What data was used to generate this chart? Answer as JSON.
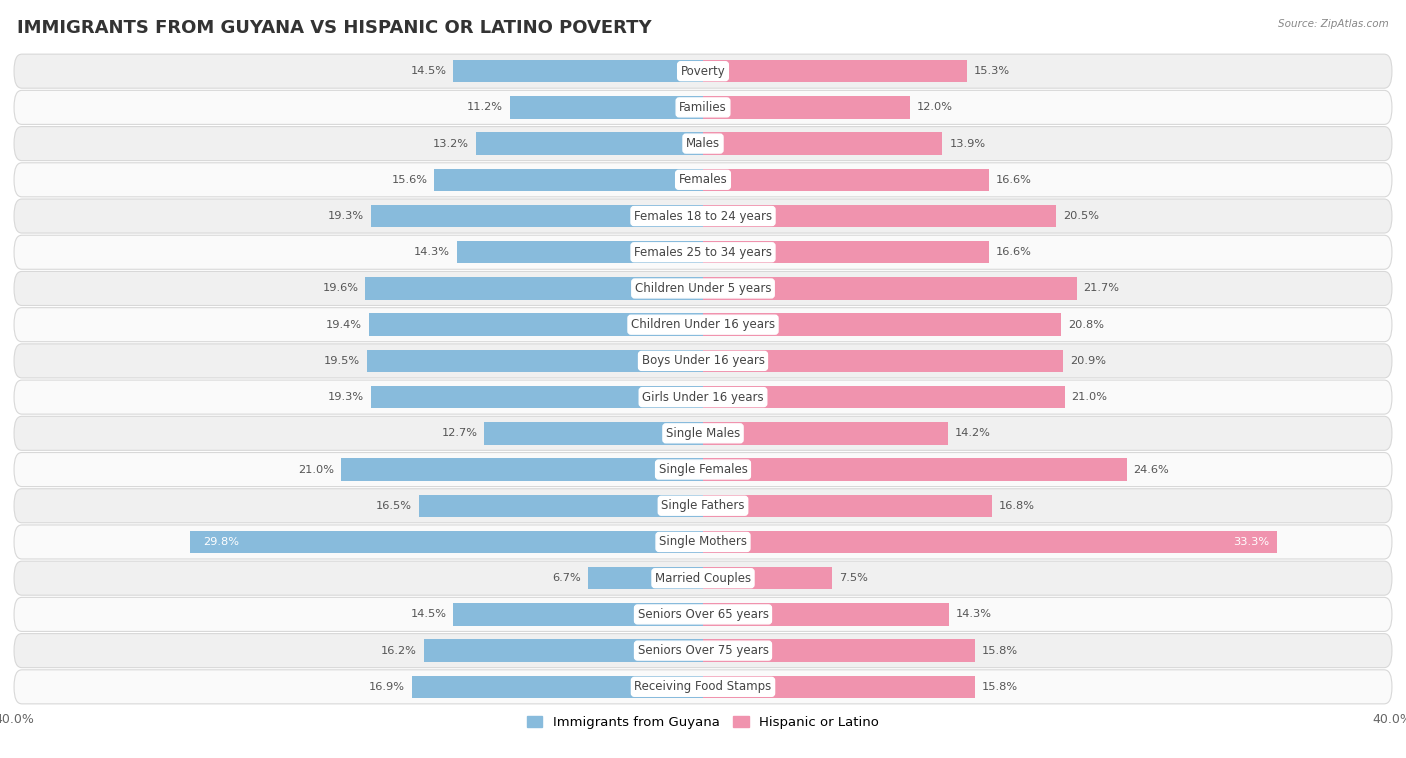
{
  "title": "IMMIGRANTS FROM GUYANA VS HISPANIC OR LATINO POVERTY",
  "source": "Source: ZipAtlas.com",
  "categories": [
    "Poverty",
    "Families",
    "Males",
    "Females",
    "Females 18 to 24 years",
    "Females 25 to 34 years",
    "Children Under 5 years",
    "Children Under 16 years",
    "Boys Under 16 years",
    "Girls Under 16 years",
    "Single Males",
    "Single Females",
    "Single Fathers",
    "Single Mothers",
    "Married Couples",
    "Seniors Over 65 years",
    "Seniors Over 75 years",
    "Receiving Food Stamps"
  ],
  "guyana_values": [
    14.5,
    11.2,
    13.2,
    15.6,
    19.3,
    14.3,
    19.6,
    19.4,
    19.5,
    19.3,
    12.7,
    21.0,
    16.5,
    29.8,
    6.7,
    14.5,
    16.2,
    16.9
  ],
  "hispanic_values": [
    15.3,
    12.0,
    13.9,
    16.6,
    20.5,
    16.6,
    21.7,
    20.8,
    20.9,
    21.0,
    14.2,
    24.6,
    16.8,
    33.3,
    7.5,
    14.3,
    15.8,
    15.8
  ],
  "guyana_color": "#88bbdc",
  "hispanic_color": "#f093ae",
  "guyana_label": "Immigrants from Guyana",
  "hispanic_label": "Hispanic or Latino",
  "xlim": 40.0,
  "bar_height": 0.62,
  "background_color": "#ffffff",
  "row_color_odd": "#f0f0f0",
  "row_color_even": "#fafafa",
  "row_border_color": "#d8d8d8",
  "title_fontsize": 13,
  "label_fontsize": 8.5,
  "value_fontsize": 8.2,
  "axis_fontsize": 9,
  "inside_label_threshold_guyana": 27.0,
  "inside_label_threshold_hispanic": 30.0
}
